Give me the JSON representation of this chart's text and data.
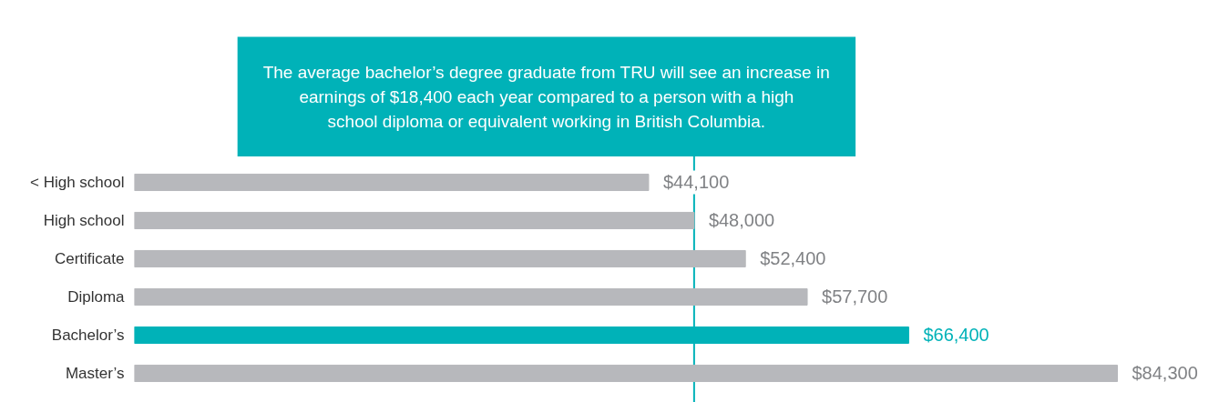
{
  "chart_data": {
    "type": "bar",
    "orientation": "horizontal",
    "categories": [
      "< High school",
      "High school",
      "Certificate",
      "Diploma",
      "Bachelor’s",
      "Master’s"
    ],
    "values": [
      44100,
      48000,
      52400,
      57700,
      66400,
      84300
    ],
    "colors": [
      "#b7b8bc",
      "#b7b8bc",
      "#b7b8bc",
      "#b7b8bc",
      "#00b2b8",
      "#b7b8bc"
    ],
    "value_labels": [
      "$44,100",
      "$48,000",
      "$52,400",
      "$57,700",
      "$66,400",
      "$84,300"
    ],
    "tick_labels": "y",
    "ref_lines": [
      {
        "axis": "x",
        "value": 48000,
        "label": null,
        "color": "#00b2b8"
      }
    ],
    "annotations": [
      "The average bachelor’s degree graduate from TRU will see an increase in\nearnings of $18,400 each year compared to a person with a high\nschool diploma or equivalent working in British Columbia."
    ]
  }
}
